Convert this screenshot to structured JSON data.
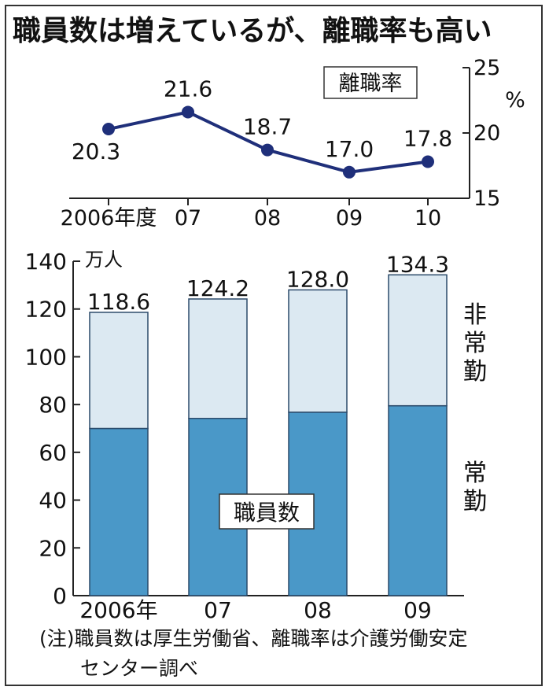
{
  "title": "職員数は増えているが、離職率も高い",
  "chart_data": [
    {
      "type": "line",
      "title": "離職率",
      "unit": "%",
      "categories": [
        "2006年度",
        "07",
        "08",
        "09",
        "10"
      ],
      "values": [
        20.3,
        21.6,
        18.7,
        17.0,
        17.8
      ],
      "value_labels": [
        "20.3",
        "21.6",
        "18.7",
        "17.0",
        "17.8"
      ],
      "ylim": [
        15,
        25
      ],
      "yticks": [
        15,
        20,
        25
      ],
      "ytick_labels": [
        "15",
        "20",
        "25"
      ],
      "grid": false,
      "colors": {
        "line": "#1f2f7a"
      }
    },
    {
      "type": "bar",
      "stacked": true,
      "box_label": "職員数",
      "unit": "万人",
      "categories": [
        "2006年",
        "07",
        "08",
        "09"
      ],
      "totals": [
        118.6,
        124.2,
        128.0,
        134.3
      ],
      "total_labels": [
        "118.6",
        "124.2",
        "128.0",
        "134.3"
      ],
      "series": [
        {
          "name": "常勤",
          "values": [
            70.0,
            74.2,
            76.8,
            79.5
          ],
          "color": "#4a98c8"
        },
        {
          "name": "非常勤",
          "values": [
            48.6,
            50.0,
            51.2,
            54.8
          ],
          "color": "#dce9f2"
        }
      ],
      "ylim": [
        0,
        140
      ],
      "yticks": [
        0,
        20,
        40,
        60,
        80,
        100,
        120,
        140
      ],
      "ytick_labels": [
        "0",
        "20",
        "40",
        "60",
        "80",
        "100",
        "120",
        "140"
      ],
      "grid": false
    }
  ],
  "note": {
    "line1": "(注)職員数は厚生労働省、離職率は介護労働安定",
    "line2": "センター調べ"
  }
}
